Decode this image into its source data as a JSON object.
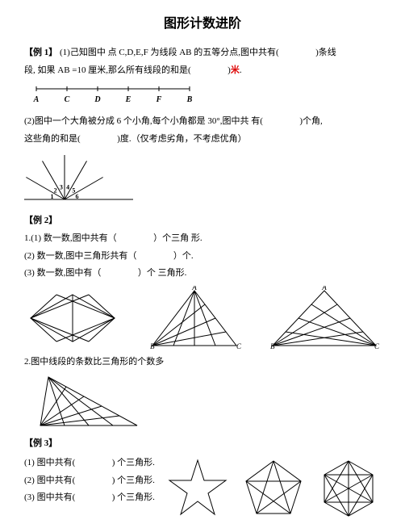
{
  "title": "图形计数进阶",
  "ex1": {
    "heading": "【例 1】",
    "part1_text": "(1)己知图中 点 C,D,E,F 为线段 AB 的五等分点,图中共有(",
    "part1_suffix": ")条线",
    "part1_line2a": "段, 如果 AB =10 厘米,那么所有线段的和是(",
    "part1_line2b": ")",
    "unit": "米",
    "line_points": [
      "A",
      "C",
      "D",
      "E",
      "F",
      "B"
    ],
    "part2_text": "(2)图中一个大角被分成 6 个小角,每个小角都是 30°,图中共 有(",
    "part2_suffix": ")个角,",
    "part2_line2a": "这些角的和是(",
    "part2_line2b": ")度.（仅考虑劣角，不考虑优角）",
    "angle_labels": [
      "1",
      "2",
      "3",
      "4",
      "5",
      "6"
    ]
  },
  "ex2": {
    "heading": "【例 2】",
    "l1a": "1.(1) 数一数,图中共有（",
    "l1b": "）个三角 形.",
    "l2a": "(2) 数一数,图中三角形共有（",
    "l2b": "）个.",
    "l3a": "(3) 数一数,图中有（",
    "l3b": "）个 三角形.",
    "q2_text": "2.图中线段的条数比三角形的个数多"
  },
  "ex3": {
    "heading": "【例 3】",
    "l1a": "(1) 图中共有(",
    "l1b": ") 个三角形.",
    "l2a": "(2) 图中共有(",
    "l2b": ") 个三角形.",
    "l3a": "(3) 图中共有(",
    "l3b": ") 个三角形."
  },
  "colors": {
    "stroke": "#000000",
    "red": "#d00000"
  }
}
